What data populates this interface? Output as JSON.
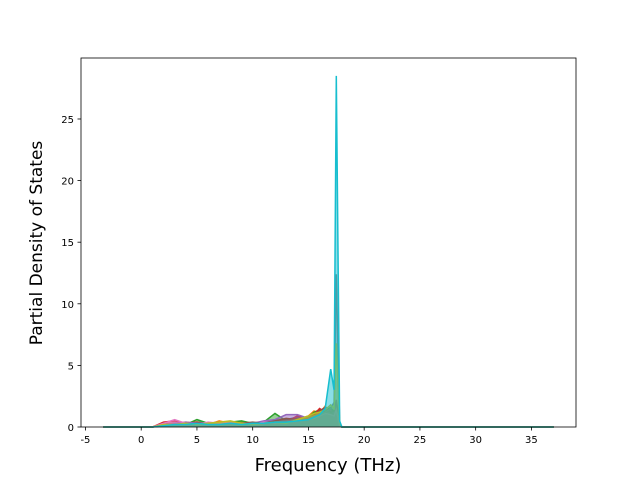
{
  "chart_data": {
    "type": "area",
    "xlabel": "Frequency (THz)",
    "ylabel": "Partial Density of States",
    "x": [
      -3.4,
      1.0,
      2.0,
      3.0,
      4.0,
      5.0,
      6.0,
      7.0,
      8.0,
      9.0,
      10.0,
      11.0,
      12.0,
      13.0,
      14.0,
      15.0,
      15.5,
      16.0,
      16.5,
      17.0,
      17.3,
      17.5,
      17.8,
      18.0,
      37.0
    ],
    "series": [
      {
        "color": "#1f77b4",
        "values": [
          0,
          0,
          0.2,
          0.3,
          0.2,
          0.4,
          0.3,
          0.2,
          0.3,
          0.2,
          0.3,
          0.4,
          0.5,
          0.6,
          0.8,
          0.7,
          0.9,
          0.8,
          1.0,
          1.2,
          0.8,
          1.5,
          0.2,
          0,
          0
        ]
      },
      {
        "color": "#ff7f0e",
        "values": [
          0,
          0,
          0.3,
          0.2,
          0.4,
          0.3,
          0.2,
          0.5,
          0.3,
          0.4,
          0.2,
          0.3,
          0.4,
          0.5,
          0.6,
          0.9,
          1.3,
          1.1,
          1.7,
          1.0,
          1.4,
          2.0,
          0.3,
          0,
          0
        ]
      },
      {
        "color": "#2ca02c",
        "values": [
          0,
          0,
          0.1,
          0.3,
          0.2,
          0.6,
          0.3,
          0.2,
          0.4,
          0.5,
          0.3,
          0.4,
          1.1,
          0.5,
          0.7,
          0.8,
          1.2,
          1.4,
          1.3,
          1.6,
          1.2,
          1.8,
          0.2,
          0,
          0
        ]
      },
      {
        "color": "#d62728",
        "values": [
          0,
          0,
          0.4,
          0.5,
          0.3,
          0.4,
          0.2,
          0.3,
          0.2,
          0.3,
          0.2,
          0.3,
          0.3,
          0.4,
          0.9,
          0.6,
          1.0,
          1.5,
          1.2,
          1.4,
          1.0,
          1.6,
          0.2,
          0,
          0
        ]
      },
      {
        "color": "#9467bd",
        "values": [
          0,
          0,
          0.2,
          0.3,
          0.4,
          0.3,
          0.3,
          0.4,
          0.3,
          0.2,
          0.3,
          0.5,
          0.6,
          1.0,
          1.0,
          0.7,
          0.9,
          1.1,
          1.0,
          1.3,
          1.1,
          1.7,
          0.2,
          0,
          0
        ]
      },
      {
        "color": "#8c564b",
        "values": [
          0,
          0,
          0.2,
          0.2,
          0.3,
          0.2,
          0.3,
          0.3,
          0.2,
          0.3,
          0.4,
          0.3,
          0.5,
          0.7,
          0.6,
          0.8,
          1.0,
          1.3,
          1.6,
          1.2,
          1.3,
          2.2,
          0.2,
          0,
          0
        ]
      },
      {
        "color": "#e377c2",
        "values": [
          0,
          0,
          0.3,
          0.6,
          0.3,
          0.2,
          0.4,
          0.3,
          0.4,
          0.3,
          0.2,
          0.4,
          0.3,
          0.4,
          0.5,
          0.6,
          0.7,
          0.9,
          1.1,
          1.0,
          0.9,
          1.4,
          0.1,
          0,
          0
        ]
      },
      {
        "color": "#7f7f7f",
        "values": [
          0,
          0,
          0.1,
          0.2,
          0.2,
          0.3,
          0.2,
          0.2,
          0.3,
          0.2,
          0.3,
          0.3,
          0.4,
          0.5,
          0.6,
          0.8,
          0.9,
          1.0,
          1.2,
          1.5,
          2.0,
          12.4,
          0.3,
          0,
          0
        ]
      },
      {
        "color": "#bcbd22",
        "values": [
          0,
          0,
          0.2,
          0.2,
          0.3,
          0.2,
          0.3,
          0.4,
          0.5,
          0.3,
          0.2,
          0.3,
          0.4,
          0.3,
          0.6,
          0.9,
          1.1,
          1.2,
          1.4,
          1.8,
          1.5,
          6.8,
          0.3,
          0,
          0
        ]
      },
      {
        "color": "#17becf",
        "values": [
          0,
          0,
          0.1,
          0.2,
          0.2,
          0.3,
          0.2,
          0.2,
          0.3,
          0.2,
          0.3,
          0.3,
          0.4,
          0.4,
          0.5,
          0.6,
          0.8,
          1.0,
          1.5,
          4.7,
          3.0,
          28.5,
          0.5,
          0,
          0
        ]
      }
    ],
    "xlim": [
      -5.4,
      39.0
    ],
    "ylim": [
      0,
      29.95
    ],
    "xticks": [
      -5,
      0,
      5,
      10,
      15,
      20,
      25,
      30,
      35
    ],
    "yticks": [
      0,
      5,
      10,
      15,
      20,
      25
    ]
  }
}
